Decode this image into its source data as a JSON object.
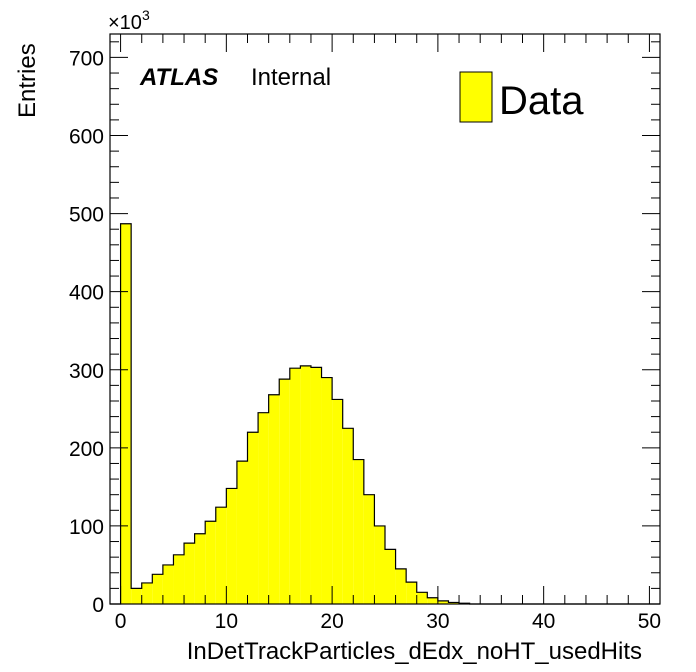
{
  "chart_data": {
    "type": "bar",
    "histogram": true,
    "bin_width": 1,
    "x_bins_start": -1,
    "values": [
      0,
      487,
      20,
      27,
      38,
      50,
      63,
      78,
      90,
      106,
      124,
      148,
      183,
      220,
      245,
      268,
      288,
      302,
      305,
      303,
      290,
      262,
      225,
      185,
      140,
      100,
      70,
      45,
      28,
      15,
      8,
      4,
      2,
      1,
      0,
      0,
      0,
      0,
      0,
      0,
      0,
      0,
      0,
      0,
      0,
      0,
      0,
      0,
      0,
      0,
      0,
      0
    ],
    "xlim": [
      -1,
      51
    ],
    "ylim": [
      0,
      730
    ],
    "x_ticks": [
      0,
      10,
      20,
      30,
      40,
      50
    ],
    "y_ticks": [
      0,
      100,
      200,
      300,
      400,
      500,
      600,
      700
    ],
    "xlabel": "InDetTrackParticles_dEdx_noHT_usedHits",
    "ylabel": "Entries",
    "y_multiplier": "×10",
    "y_multiplier_exp": "3",
    "legend_placement": "top-right",
    "series": [
      {
        "name": "Data",
        "color": "#ffff00"
      }
    ],
    "fill_color": "#ffff00",
    "atlas_label": "ATLAS",
    "atlas_status": "Internal"
  }
}
